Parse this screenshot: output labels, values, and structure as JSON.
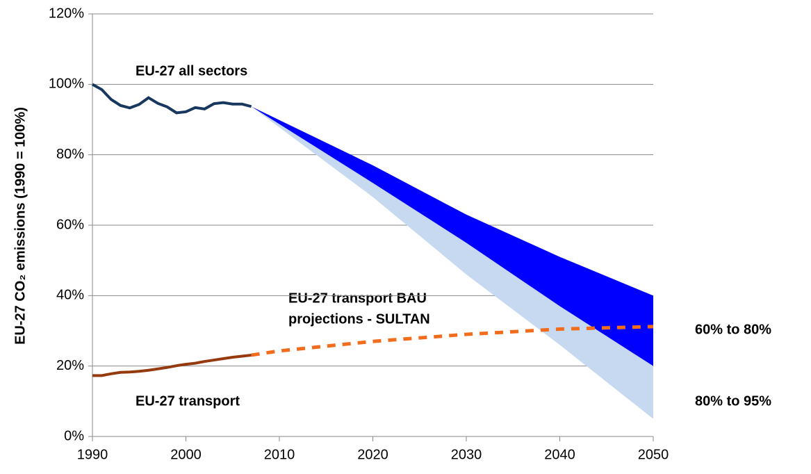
{
  "chart_data": {
    "type": "line",
    "y_label": "EU-27 CO₂ emissions (1990 = 100%)",
    "xlim": [
      1990,
      2050
    ],
    "xticks": [
      1990,
      2000,
      2010,
      2020,
      2030,
      2040,
      2050
    ],
    "ylim": [
      0,
      120
    ],
    "yticks": [
      {
        "value": 0,
        "label": "0%"
      },
      {
        "value": 20,
        "label": "20%"
      },
      {
        "value": 40,
        "label": "40%"
      },
      {
        "value": 60,
        "label": "60%"
      },
      {
        "value": 80,
        "label": "80%"
      },
      {
        "value": 100,
        "label": "100%"
      },
      {
        "value": 120,
        "label": "120%"
      }
    ],
    "grid": true,
    "bands": [
      {
        "name": "80% to 95%",
        "color": "#c6d9f1",
        "x": [
          2007,
          2020,
          2030,
          2040,
          2050
        ],
        "upper": [
          93.7,
          72,
          55,
          37,
          20
        ],
        "lower": [
          93.7,
          68,
          46,
          26,
          5
        ]
      },
      {
        "name": "60% to 80%",
        "color": "#0000ff",
        "x": [
          2007,
          2020,
          2030,
          2040,
          2050
        ],
        "upper": [
          93.7,
          77,
          63,
          51,
          40
        ],
        "lower": [
          93.7,
          72,
          55,
          37,
          20
        ]
      }
    ],
    "series": [
      {
        "color": "#17375e",
        "dashed": false,
        "x": [
          1990,
          1991,
          1992,
          1993,
          1994,
          1995,
          1996,
          1997,
          1998,
          1999,
          2000,
          2001,
          2002,
          2003,
          2004,
          2005,
          2006,
          2007
        ],
        "values": [
          100,
          98.5,
          95.7,
          94,
          93.3,
          94.3,
          96.2,
          94.6,
          93.6,
          91.9,
          92.2,
          93.4,
          93,
          94.5,
          94.8,
          94.4,
          94.4,
          93.7
        ]
      },
      {
        "color": "#f26c1d",
        "dashed": true,
        "x": [
          2007,
          2010,
          2020,
          2030,
          2040,
          2050
        ],
        "values": [
          23.1,
          24.3,
          27,
          29,
          30.5,
          31.2
        ]
      },
      {
        "color": "#953a0f",
        "dashed": false,
        "x": [
          1990,
          1991,
          1992,
          1993,
          1994,
          1995,
          1996,
          1997,
          1998,
          1999,
          2000,
          2001,
          2002,
          2003,
          2004,
          2005,
          2006,
          2007
        ],
        "values": [
          17.3,
          17.3,
          17.8,
          18.2,
          18.3,
          18.5,
          18.8,
          19.2,
          19.6,
          20.1,
          20.5,
          20.8,
          21.3,
          21.7,
          22.1,
          22.5,
          22.8,
          23.1
        ]
      }
    ],
    "annotations": [
      "EU-27 all sectors",
      "EU-27 transport BAU",
      "projections - SULTAN",
      "EU-27 transport"
    ]
  }
}
